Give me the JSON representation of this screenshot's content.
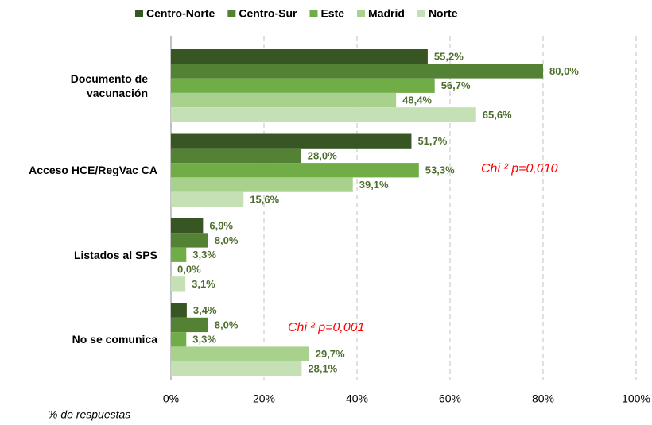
{
  "chart_data": {
    "type": "bar",
    "orientation": "horizontal",
    "categories": [
      "Documento de vacunación",
      "Acceso HCE/RegVac CA",
      "Listados al SPS",
      "No se comunica"
    ],
    "series": [
      {
        "name": "Centro-Norte",
        "color": "#375623",
        "values": [
          55.2,
          51.7,
          6.9,
          3.4
        ],
        "value_labels": [
          "55,2%",
          "51,7%",
          "6,9%",
          "3,4%"
        ]
      },
      {
        "name": "Centro-Sur",
        "color": "#548235",
        "values": [
          80.0,
          28.0,
          8.0,
          8.0
        ],
        "value_labels": [
          "80,0%",
          "28,0%",
          "8,0%",
          "8,0%"
        ]
      },
      {
        "name": "Este",
        "color": "#70ad47",
        "values": [
          56.7,
          53.3,
          3.3,
          3.3
        ],
        "value_labels": [
          "56,7%",
          "53,3%",
          "3,3%",
          "3,3%"
        ]
      },
      {
        "name": "Madrid",
        "color": "#a9d18e",
        "values": [
          48.4,
          39.1,
          0.0,
          29.7
        ],
        "value_labels": [
          "48,4%",
          "39,1%",
          "0,0%",
          "29,7%"
        ]
      },
      {
        "name": "Norte",
        "color": "#c5e0b4",
        "values": [
          65.6,
          15.6,
          3.1,
          28.1
        ],
        "value_labels": [
          "65,6%",
          "15,6%",
          "3,1%",
          "28,1%"
        ]
      }
    ],
    "xlabel": "% de respuestas",
    "xlim": [
      0,
      100
    ],
    "xticks": [
      {
        "value": 0,
        "label": "0%"
      },
      {
        "value": 20,
        "label": "20%"
      },
      {
        "value": 40,
        "label": "40%"
      },
      {
        "value": 60,
        "label": "60%"
      },
      {
        "value": 80,
        "label": "80%"
      },
      {
        "value": 100,
        "label": "100%"
      }
    ],
    "grid": true,
    "legend": "top",
    "annotations": [
      "Chi ² p=0,010",
      "Chi ² p=0,001"
    ]
  }
}
